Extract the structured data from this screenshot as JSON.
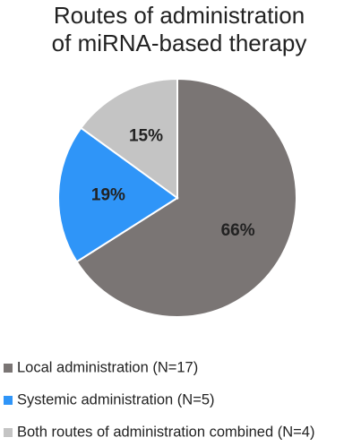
{
  "chart_data": {
    "type": "pie",
    "title": [
      "Routes of administration",
      "of miRNA-based therapy"
    ],
    "categories": [
      "Local administration (N=17)",
      "Systemic administration (N=5)",
      "Both routes of administration combined (N=4)"
    ],
    "values": [
      66,
      19,
      15
    ],
    "value_labels": [
      "66%",
      "19%",
      "15%"
    ],
    "colors": [
      "#7a7574",
      "#2f95f8",
      "#c4c4c4"
    ],
    "legend": "bottom-left"
  }
}
